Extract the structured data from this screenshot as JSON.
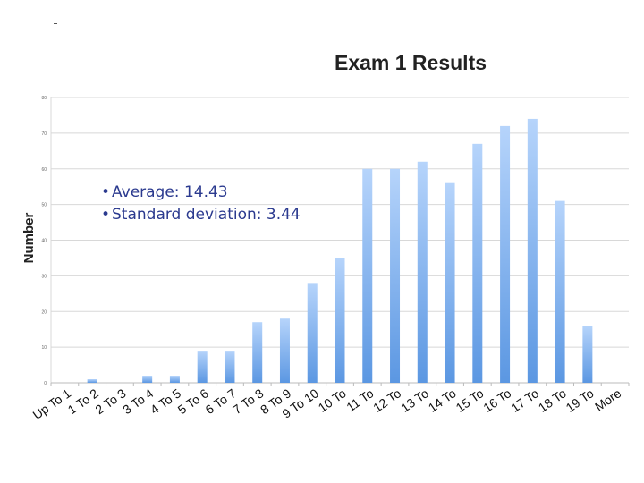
{
  "chart_data": {
    "type": "bar",
    "title": "Exam 1 Results",
    "xlabel": "",
    "ylabel": "Number",
    "ylim": [
      0,
      80
    ],
    "yticks": [
      0,
      10,
      20,
      30,
      40,
      50,
      60,
      70,
      80
    ],
    "grid": true,
    "legend": "none",
    "bar_color": "#7eaee8",
    "categories": [
      "Up To 1",
      "1 To 2",
      "2 To 3",
      "3 To 4",
      "4 To 5",
      "5 To 6",
      "6 To 7",
      "7 To 8",
      "8 To 9",
      "9 To 10",
      "10 To",
      "11 To",
      "12 To",
      "13 To",
      "14 To",
      "15 To",
      "16 To",
      "17 To",
      "18 To",
      "19 To",
      "More"
    ],
    "values": [
      0,
      1,
      0,
      2,
      2,
      9,
      9,
      17,
      18,
      28,
      35,
      60,
      60,
      62,
      56,
      67,
      72,
      74,
      51,
      16,
      0
    ]
  },
  "stats": {
    "average": "Average: 14.43",
    "std_dev": "Standard deviation: 3.44"
  }
}
